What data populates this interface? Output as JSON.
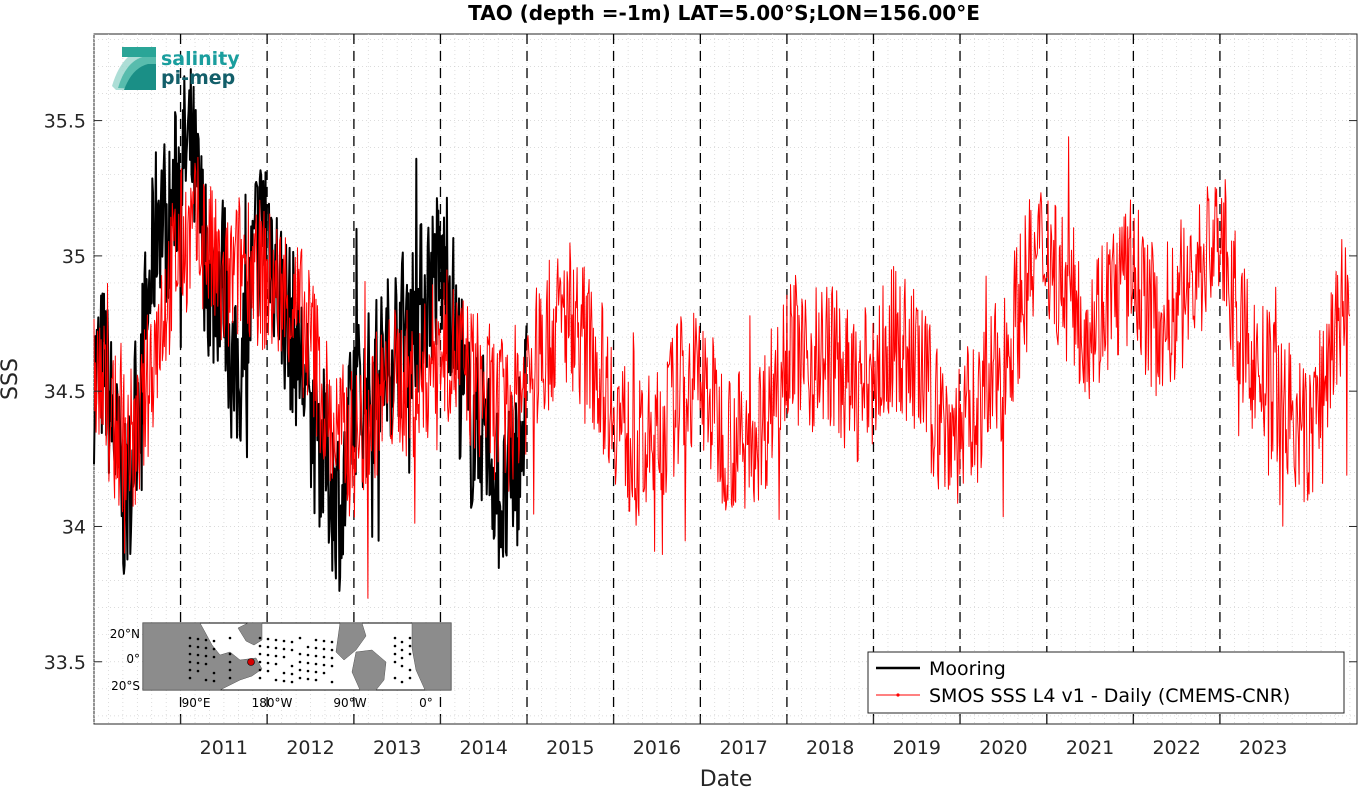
{
  "chart_data": {
    "type": "line",
    "title": "TAO (depth =-1m) LAT=5.00°S;LON=156.00°E",
    "xlabel": "Date",
    "ylabel": "SSS",
    "xlim": [
      "2010-01-01",
      "2024-08-01"
    ],
    "ylim": [
      33.27,
      35.82
    ],
    "yticks": [
      33.5,
      34,
      34.5,
      35,
      35.5
    ],
    "ytick_labels": [
      "33.5",
      "34",
      "34.5",
      "35",
      "35.5"
    ],
    "xtick_labels": [
      "2011",
      "2012",
      "2013",
      "2014",
      "2015",
      "2016",
      "2017",
      "2018",
      "2019",
      "2020",
      "2021",
      "2022",
      "2023"
    ],
    "year_boundaries": [
      "2011-01-01",
      "2012-01-01",
      "2013-01-01",
      "2014-01-01",
      "2015-01-01",
      "2016-01-01",
      "2017-01-01",
      "2018-01-01",
      "2019-01-01",
      "2020-01-01",
      "2021-01-01",
      "2022-01-01",
      "2023-01-01"
    ],
    "grid": true,
    "legend_position": "bottom-right",
    "series": [
      {
        "name": "Mooring",
        "color": "#000000",
        "x": [
          "2010-01-01",
          "2010-02-15",
          "2010-04-01",
          "2010-05-15",
          "2010-07-01",
          "2010-08-15",
          "2010-10-01",
          "2010-11-15",
          "2011-01-01",
          "2011-02-15",
          "2011-04-01",
          "2011-05-15",
          "2011-07-01",
          "2011-08-15",
          "2011-10-01",
          "2011-11-15",
          "2012-01-01",
          "2012-02-15",
          "2012-04-01",
          "2012-05-15",
          "2012-07-01",
          "2012-08-15",
          "2012-10-01",
          "2012-11-15",
          "2013-01-01",
          "2013-02-15",
          "2013-04-01",
          "2013-05-15",
          "2013-07-01",
          "2013-08-15",
          "2013-10-01",
          "2013-11-15",
          "2014-01-01",
          "2014-02-15",
          "2014-04-01",
          "2014-05-15",
          "2014-07-01",
          "2014-08-15",
          "2014-10-01",
          "2014-11-15",
          "2014-12-31"
        ],
        "values": [
          34.55,
          34.6,
          34.3,
          34.05,
          34.45,
          34.8,
          35.2,
          35.1,
          35.35,
          35.4,
          35.1,
          34.85,
          34.95,
          34.5,
          34.65,
          35.05,
          35.15,
          34.9,
          34.75,
          34.65,
          34.4,
          34.3,
          34.15,
          34.05,
          34.5,
          34.45,
          34.55,
          34.6,
          34.7,
          34.75,
          34.8,
          34.9,
          34.95,
          34.85,
          34.5,
          34.35,
          34.4,
          34.2,
          34.05,
          34.25,
          34.45
        ]
      },
      {
        "name": "SMOS SSS L4 v1 - Daily (CMEMS-CNR)",
        "color": "#ff0000",
        "x": [
          "2010-01-01",
          "2010-04-01",
          "2010-07-01",
          "2010-10-01",
          "2011-01-01",
          "2011-04-01",
          "2011-07-01",
          "2011-10-01",
          "2012-01-01",
          "2012-04-01",
          "2012-07-01",
          "2012-10-01",
          "2013-01-01",
          "2013-04-01",
          "2013-07-01",
          "2013-10-01",
          "2014-01-01",
          "2014-04-01",
          "2014-07-01",
          "2014-10-01",
          "2015-01-01",
          "2015-04-01",
          "2015-07-01",
          "2015-10-01",
          "2016-01-01",
          "2016-04-01",
          "2016-07-01",
          "2016-10-01",
          "2017-01-01",
          "2017-04-01",
          "2017-07-01",
          "2017-10-01",
          "2018-01-01",
          "2018-04-01",
          "2018-07-01",
          "2018-10-01",
          "2019-01-01",
          "2019-04-01",
          "2019-07-01",
          "2019-10-01",
          "2020-01-01",
          "2020-04-01",
          "2020-07-01",
          "2020-10-01",
          "2021-01-01",
          "2021-04-01",
          "2021-07-01",
          "2021-10-01",
          "2022-01-01",
          "2022-04-01",
          "2022-07-01",
          "2022-10-01",
          "2023-01-01",
          "2023-04-01",
          "2023-07-01",
          "2023-10-01",
          "2024-01-01",
          "2024-04-01",
          "2024-07-01"
        ],
        "values": [
          34.6,
          34.35,
          34.3,
          34.75,
          35.05,
          35.1,
          34.85,
          35.0,
          34.9,
          34.85,
          34.7,
          34.35,
          34.3,
          34.45,
          34.55,
          34.5,
          34.7,
          34.6,
          34.5,
          34.4,
          34.55,
          34.7,
          34.8,
          34.65,
          34.45,
          34.25,
          34.3,
          34.5,
          34.55,
          34.35,
          34.3,
          34.4,
          34.7,
          34.6,
          34.65,
          34.5,
          34.55,
          34.7,
          34.6,
          34.4,
          34.35,
          34.45,
          34.6,
          34.9,
          35.05,
          34.85,
          34.75,
          34.85,
          34.95,
          34.75,
          34.8,
          34.95,
          35.1,
          34.7,
          34.55,
          34.45,
          34.3,
          34.6,
          34.9
        ]
      }
    ]
  },
  "logo": {
    "line1": "salinity",
    "line2": "pi-mep",
    "color": "#1a9e9e"
  },
  "inset_map": {
    "lat_labels": [
      "20°N",
      "0°",
      "20°S"
    ],
    "lon_labels": [
      "90°E",
      "180°W",
      "90°W",
      "0°"
    ]
  }
}
